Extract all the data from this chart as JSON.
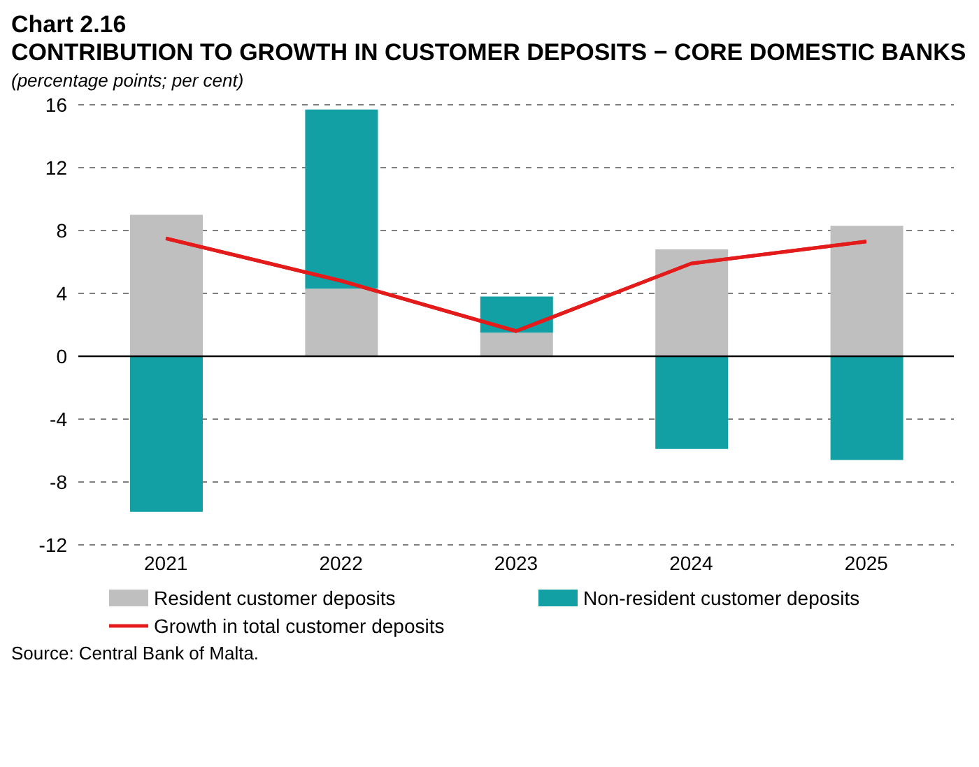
{
  "chart_data": {
    "type": "bar",
    "title": "Chart 2.16",
    "subtitle": "CONTRIBUTION TO GROWTH IN CUSTOMER DEPOSITS − CORE DOMESTIC BANKS",
    "ylabel": "(percentage points; per cent)",
    "categories": [
      "2021",
      "2022",
      "2023",
      "2024",
      "2025"
    ],
    "stacked": true,
    "series": [
      {
        "name": "Resident customer deposits",
        "color": "#bfbfbf",
        "values": [
          9.0,
          4.3,
          1.5,
          6.8,
          8.3
        ]
      },
      {
        "name": "Non-resident customer deposits",
        "color": "#13a0a5",
        "values": [
          -9.9,
          11.4,
          2.3,
          -5.9,
          -6.6
        ]
      },
      {
        "name": "Growth in total customer deposits",
        "type": "line",
        "color": "#e31b1b",
        "values": [
          7.5,
          4.8,
          1.6,
          5.9,
          7.3
        ]
      }
    ],
    "ylim": [
      -12,
      16
    ],
    "yticks": [
      -12,
      -8,
      -4,
      0,
      4,
      8,
      12,
      16
    ],
    "grid": "y",
    "legend": "bottom",
    "marker": "none",
    "ref_lines": [
      {
        "axis": "y",
        "value": 0,
        "color": "#000000"
      }
    ],
    "annotations": [
      "Source: Central Bank of Malta."
    ]
  }
}
